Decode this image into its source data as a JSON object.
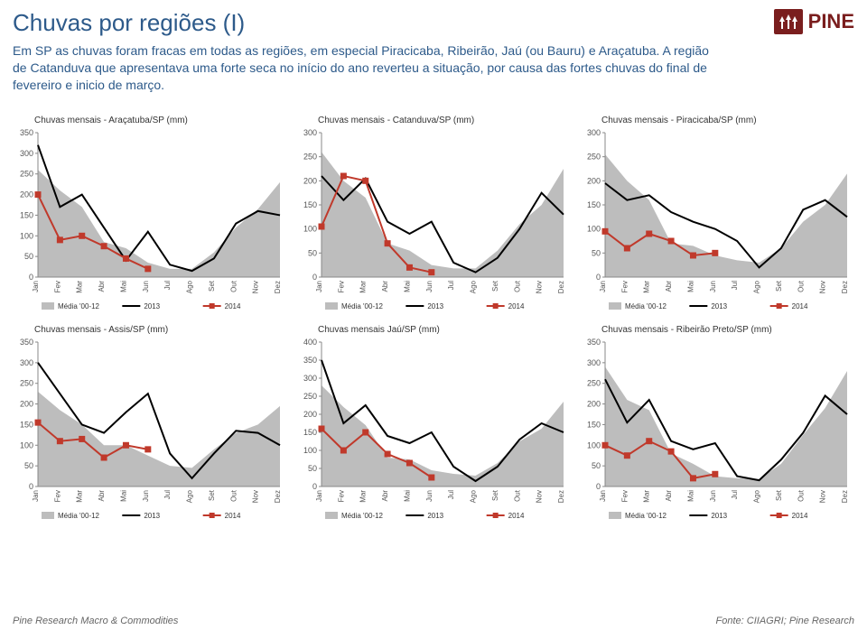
{
  "header": {
    "title": "Chuvas por regiões (I)",
    "subtitle": "Em SP as chuvas foram fracas em todas as regiões, em especial Piracicaba, Ribeirão, Jaú (ou Bauru) e Araçatuba. A região de Catanduva que apresentava uma forte seca no início do ano reverteu a situação, por causa das fortes chuvas do final de fevereiro e inicio de março.",
    "logo_text": "PINE"
  },
  "months": [
    "Jan",
    "Fev",
    "Mar",
    "Abr",
    "Mai",
    "Jun",
    "Jul",
    "Ago",
    "Set",
    "Out",
    "Nov",
    "Dez"
  ],
  "legend_labels": [
    "Média '00-12",
    "2013",
    "2014"
  ],
  "colors": {
    "media_fill": "#bdbdbd",
    "line2013": "#000000",
    "line2014": "#c0392b",
    "marker2014": "#c0392b",
    "axis": "#888888",
    "text": "#555555"
  },
  "style": {
    "line_width_2013": 2,
    "line_width_2014": 2,
    "marker_size": 3.5,
    "title_fontsize": 10,
    "axis_fontsize": 9,
    "xlabel_fontsize": 8
  },
  "charts": [
    {
      "title": "Chuvas mensais - Araçatuba/SP (mm)",
      "ymax": 350,
      "ystep": 50,
      "media": [
        260,
        210,
        170,
        85,
        70,
        35,
        20,
        20,
        60,
        120,
        165,
        230
      ],
      "s2013": [
        320,
        170,
        200,
        120,
        40,
        110,
        30,
        15,
        45,
        130,
        160,
        150
      ],
      "s2014": [
        200,
        90,
        100,
        75,
        45,
        20
      ]
    },
    {
      "title": "Chuvas mensais - Catanduva/SP (mm)",
      "ymax": 300,
      "ystep": 50,
      "media": [
        260,
        200,
        165,
        70,
        55,
        25,
        18,
        18,
        55,
        110,
        150,
        225
      ],
      "s2013": [
        210,
        160,
        205,
        115,
        90,
        115,
        30,
        10,
        40,
        100,
        175,
        130
      ],
      "s2014": [
        105,
        210,
        200,
        70,
        20,
        10
      ]
    },
    {
      "title": "Chuvas mensais - Piracicaba/SP (mm)",
      "ymax": 300,
      "ystep": 50,
      "media": [
        255,
        200,
        160,
        70,
        65,
        45,
        35,
        30,
        60,
        115,
        150,
        215
      ],
      "s2013": [
        195,
        160,
        170,
        135,
        115,
        100,
        75,
        20,
        60,
        140,
        160,
        125
      ],
      "s2014": [
        95,
        60,
        90,
        75,
        45,
        50
      ]
    },
    {
      "title": "Chuvas mensais - Assis/SP (mm)",
      "ymax": 350,
      "ystep": 50,
      "media": [
        230,
        185,
        150,
        100,
        100,
        75,
        50,
        45,
        90,
        130,
        150,
        195
      ],
      "s2013": [
        300,
        225,
        150,
        130,
        180,
        225,
        80,
        20,
        80,
        135,
        130,
        100
      ],
      "s2014": [
        155,
        110,
        115,
        70,
        100,
        90
      ]
    },
    {
      "title": "Chuvas mensais Jaú/SP (mm)",
      "ymax": 400,
      "ystep": 50,
      "media": [
        280,
        220,
        170,
        80,
        75,
        45,
        35,
        30,
        65,
        125,
        160,
        235
      ],
      "s2013": [
        350,
        175,
        225,
        140,
        120,
        150,
        55,
        15,
        55,
        130,
        175,
        150
      ],
      "s2014": [
        160,
        100,
        150,
        90,
        65,
        25
      ]
    },
    {
      "title": "Chuvas mensais - Ribeirão Preto/SP (mm)",
      "ymax": 350,
      "ystep": 50,
      "media": [
        290,
        210,
        185,
        80,
        55,
        25,
        20,
        18,
        55,
        125,
        190,
        280
      ],
      "s2013": [
        260,
        155,
        210,
        110,
        90,
        105,
        25,
        15,
        65,
        130,
        220,
        175
      ],
      "s2014": [
        100,
        75,
        110,
        85,
        20,
        30
      ]
    }
  ],
  "footer": {
    "left": "Pine Research Macro & Commodities",
    "right": "Fonte: CIIAGRI; Pine Research"
  }
}
